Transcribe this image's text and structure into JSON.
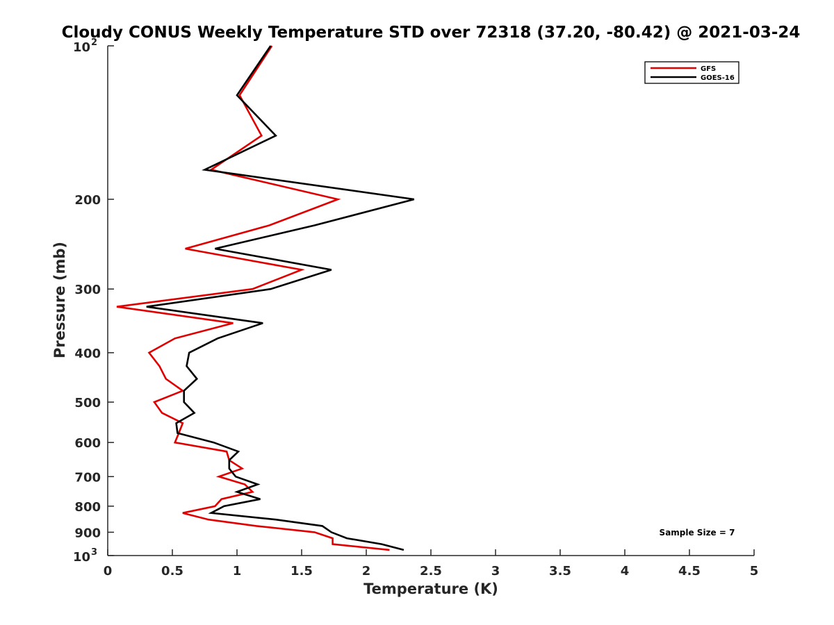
{
  "chart_data": {
    "type": "line",
    "title": "Cloudy CONUS Weekly Temperature STD over 72318 (37.20, -80.42) @ 2021-03-24",
    "xlabel": "Temperature (K)",
    "ylabel": "Pressure (mb)",
    "xlim": [
      0,
      5
    ],
    "ylim": [
      100,
      1000
    ],
    "y_scale": "log",
    "y_reversed": true,
    "grid": false,
    "legend_position": "top-right",
    "x_ticks": [
      0,
      0.5,
      1,
      1.5,
      2,
      2.5,
      3,
      3.5,
      4,
      4.5,
      5
    ],
    "x_tick_labels": [
      "0",
      "0.5",
      "1",
      "1.5",
      "2",
      "2.5",
      "3",
      "3.5",
      "4",
      "4.5",
      "5"
    ],
    "y_ticks": [
      200,
      300,
      400,
      500,
      600,
      700,
      800,
      900
    ],
    "y_tick_labels": [
      "200",
      "300",
      "400",
      "500",
      "600",
      "700",
      "800",
      "900"
    ],
    "y_end_labels": [
      {
        "pressure": 100,
        "base": "10",
        "exp": "2"
      },
      {
        "pressure": 1000,
        "base": "10",
        "exp": "3"
      }
    ],
    "annotation": "Sample Size = 7",
    "series": [
      {
        "name": "GFS",
        "color": "#e00000",
        "pressure": [
          100,
          125,
          150,
          175,
          200,
          225,
          250,
          275,
          300,
          325,
          350,
          375,
          400,
          425,
          450,
          475,
          500,
          525,
          550,
          575,
          600,
          625,
          650,
          675,
          700,
          725,
          750,
          775,
          800,
          825,
          850,
          875,
          900,
          925,
          950,
          975
        ],
        "values": [
          1.27,
          1.02,
          1.19,
          0.8,
          1.78,
          1.25,
          0.6,
          1.5,
          1.12,
          0.07,
          0.97,
          0.52,
          0.32,
          0.4,
          0.45,
          0.58,
          0.36,
          0.42,
          0.58,
          0.55,
          0.52,
          0.92,
          0.94,
          1.04,
          0.86,
          1.06,
          1.12,
          0.88,
          0.83,
          0.58,
          0.78,
          1.15,
          1.6,
          1.74,
          1.74,
          2.18
        ]
      },
      {
        "name": "GOES-16",
        "color": "#000000",
        "pressure": [
          100,
          125,
          150,
          175,
          200,
          225,
          250,
          275,
          300,
          325,
          350,
          375,
          400,
          425,
          450,
          475,
          500,
          525,
          550,
          575,
          600,
          625,
          650,
          675,
          700,
          725,
          750,
          775,
          800,
          825,
          850,
          875,
          900,
          925,
          950,
          975
        ],
        "values": [
          1.26,
          1.0,
          1.3,
          0.75,
          2.37,
          1.6,
          0.83,
          1.73,
          1.26,
          0.3,
          1.2,
          0.85,
          0.63,
          0.61,
          0.69,
          0.59,
          0.59,
          0.67,
          0.53,
          0.54,
          0.82,
          1.01,
          0.94,
          0.94,
          0.99,
          1.16,
          1.0,
          1.18,
          0.9,
          0.8,
          1.3,
          1.66,
          1.73,
          1.85,
          2.12,
          2.29
        ]
      }
    ]
  }
}
